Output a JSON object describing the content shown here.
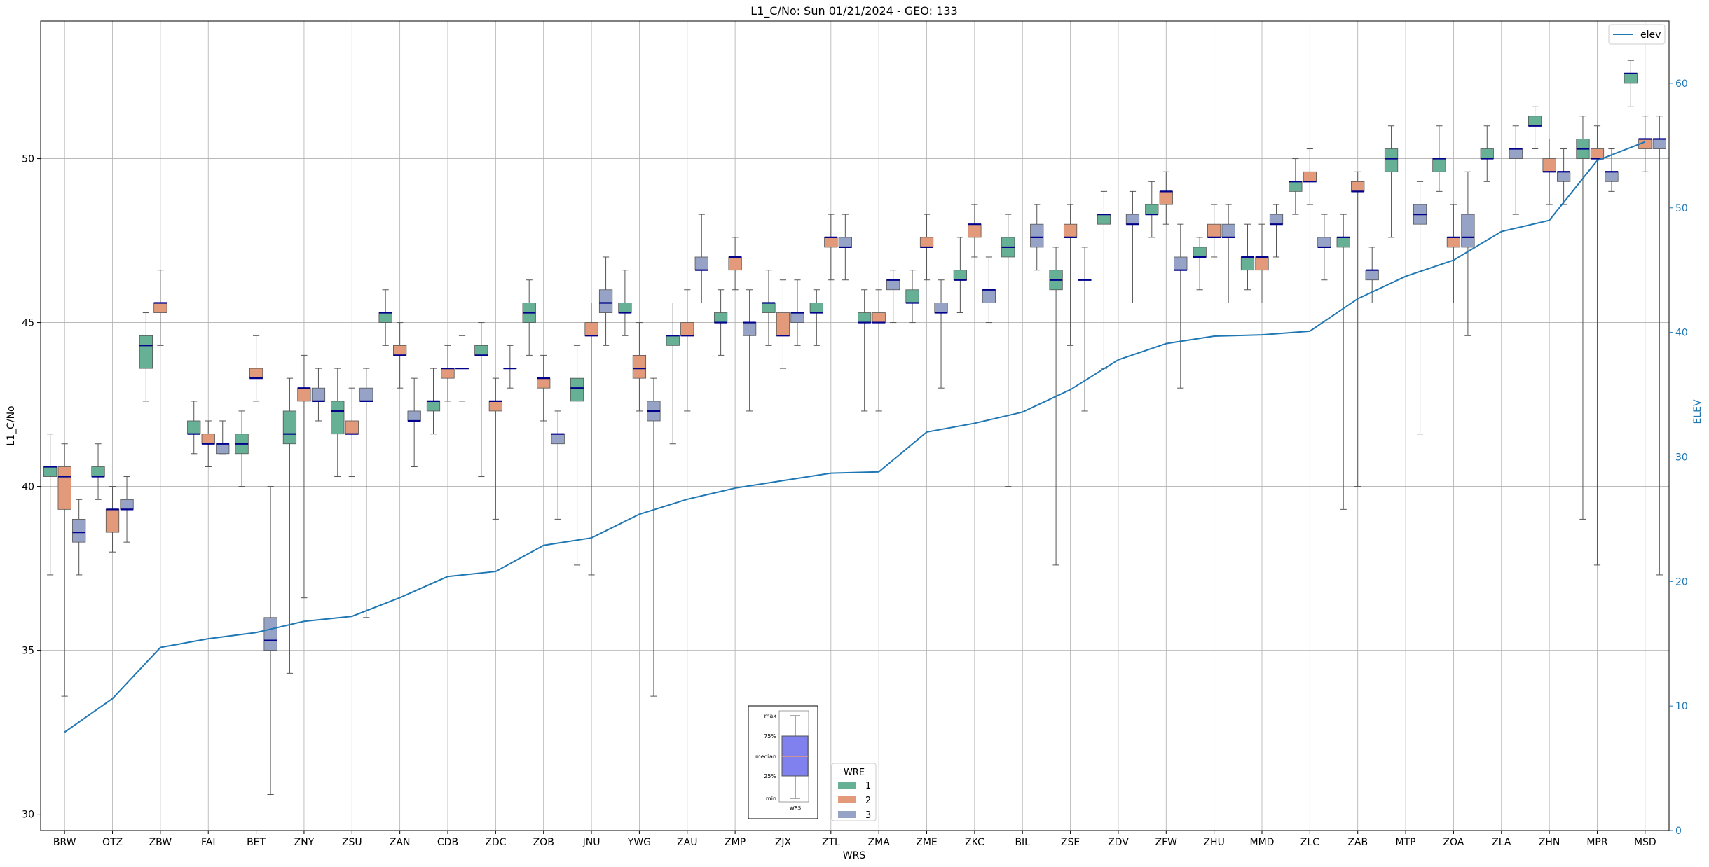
{
  "chart_data": {
    "type": "box",
    "title": "L1_C/No: Sun 01/21/2024 - GEO: 133",
    "xlabel": "WRS",
    "ylabel": "L1_C/No",
    "y2label": "ELEV",
    "ylim": [
      29.5,
      54.2
    ],
    "y2lim": [
      0,
      65
    ],
    "yticks": [
      30,
      35,
      40,
      45,
      50
    ],
    "y2ticks": [
      0,
      10,
      20,
      30,
      40,
      50,
      60
    ],
    "grid": true,
    "categories": [
      "BRW",
      "OTZ",
      "ZBW",
      "FAI",
      "BET",
      "ZNY",
      "ZSU",
      "ZAN",
      "CDB",
      "ZDC",
      "ZOB",
      "JNU",
      "YWG",
      "ZAU",
      "ZMP",
      "ZJX",
      "ZTL",
      "ZMA",
      "ZME",
      "ZKC",
      "BIL",
      "ZSE",
      "ZDV",
      "ZFW",
      "ZHU",
      "MMD",
      "ZLC",
      "ZAB",
      "MTP",
      "ZOA",
      "ZLA",
      "ZHN",
      "MPR",
      "MSD"
    ],
    "legend_title": "WRE",
    "legend_position": "bottom-center",
    "series": [
      {
        "name": "1",
        "color": "#66b096",
        "boxes": [
          {
            "cat": "BRW",
            "min": 37.3,
            "q1": 40.3,
            "median": 40.6,
            "q3": 40.6,
            "max": 41.6
          },
          {
            "cat": "OTZ",
            "min": 39.6,
            "q1": 40.3,
            "median": 40.3,
            "q3": 40.6,
            "max": 41.3
          },
          {
            "cat": "ZBW",
            "min": 42.6,
            "q1": 43.6,
            "median": 44.3,
            "q3": 44.6,
            "max": 45.3
          },
          {
            "cat": "FAI",
            "min": 41.0,
            "q1": 41.6,
            "median": 41.6,
            "q3": 42.0,
            "max": 42.6
          },
          {
            "cat": "BET",
            "min": 40.0,
            "q1": 41.0,
            "median": 41.3,
            "q3": 41.6,
            "max": 42.3
          },
          {
            "cat": "ZNY",
            "min": 34.3,
            "q1": 41.3,
            "median": 41.6,
            "q3": 42.3,
            "max": 43.3
          },
          {
            "cat": "ZSU",
            "min": 40.3,
            "q1": 41.6,
            "median": 42.3,
            "q3": 42.6,
            "max": 43.6
          },
          {
            "cat": "ZAN",
            "min": 44.3,
            "q1": 45.0,
            "median": 45.3,
            "q3": 45.3,
            "max": 46.0
          },
          {
            "cat": "CDB",
            "min": 41.6,
            "q1": 42.3,
            "median": 42.6,
            "q3": 42.6,
            "max": 43.6
          },
          {
            "cat": "ZDC",
            "min": 40.3,
            "q1": 44.0,
            "median": 44.0,
            "q3": 44.3,
            "max": 45.0
          },
          {
            "cat": "ZOB",
            "min": 44.0,
            "q1": 45.0,
            "median": 45.3,
            "q3": 45.6,
            "max": 46.3
          },
          {
            "cat": "JNU",
            "min": 37.6,
            "q1": 42.6,
            "median": 43.0,
            "q3": 43.3,
            "max": 44.3
          },
          {
            "cat": "YWG",
            "min": 44.6,
            "q1": 45.3,
            "median": 45.3,
            "q3": 45.6,
            "max": 46.6
          },
          {
            "cat": "ZAU",
            "min": 41.3,
            "q1": 44.3,
            "median": 44.6,
            "q3": 44.6,
            "max": 45.6
          },
          {
            "cat": "ZMP",
            "min": 44.0,
            "q1": 45.0,
            "median": 45.0,
            "q3": 45.3,
            "max": 46.0
          },
          {
            "cat": "ZJX",
            "min": 44.3,
            "q1": 45.3,
            "median": 45.6,
            "q3": 45.6,
            "max": 46.6
          },
          {
            "cat": "ZTL",
            "min": 44.3,
            "q1": 45.3,
            "median": 45.3,
            "q3": 45.6,
            "max": 46.0
          },
          {
            "cat": "ZMA",
            "min": 42.3,
            "q1": 45.0,
            "median": 45.0,
            "q3": 45.3,
            "max": 46.0
          },
          {
            "cat": "ZME",
            "min": 45.0,
            "q1": 45.6,
            "median": 45.6,
            "q3": 46.0,
            "max": 46.6
          },
          {
            "cat": "ZKC",
            "min": 45.3,
            "q1": 46.3,
            "median": 46.3,
            "q3": 46.6,
            "max": 47.6
          },
          {
            "cat": "BIL",
            "min": 40.0,
            "q1": 47.0,
            "median": 47.3,
            "q3": 47.6,
            "max": 48.3
          },
          {
            "cat": "ZSE",
            "min": 37.6,
            "q1": 46.0,
            "median": 46.3,
            "q3": 46.6,
            "max": 47.3
          },
          {
            "cat": "ZDV",
            "min": 43.6,
            "q1": 48.0,
            "median": 48.3,
            "q3": 48.3,
            "max": 49.0
          },
          {
            "cat": "ZFW",
            "min": 47.6,
            "q1": 48.3,
            "median": 48.3,
            "q3": 48.6,
            "max": 49.3
          },
          {
            "cat": "ZHU",
            "min": 46.0,
            "q1": 47.0,
            "median": 47.0,
            "q3": 47.3,
            "max": 47.6
          },
          {
            "cat": "MMD",
            "min": 46.0,
            "q1": 46.6,
            "median": 47.0,
            "q3": 47.0,
            "max": 48.0
          },
          {
            "cat": "ZLC",
            "min": 48.3,
            "q1": 49.0,
            "median": 49.3,
            "q3": 49.3,
            "max": 50.0
          },
          {
            "cat": "ZAB",
            "min": 39.3,
            "q1": 47.3,
            "median": 47.6,
            "q3": 47.6,
            "max": 48.3
          },
          {
            "cat": "MTP",
            "min": 47.6,
            "q1": 49.6,
            "median": 50.0,
            "q3": 50.3,
            "max": 51.0
          },
          {
            "cat": "ZOA",
            "min": 49.0,
            "q1": 49.6,
            "median": 50.0,
            "q3": 50.0,
            "max": 51.0
          },
          {
            "cat": "ZLA",
            "min": 49.3,
            "q1": 50.0,
            "median": 50.0,
            "q3": 50.3,
            "max": 51.0
          },
          {
            "cat": "ZHN",
            "min": 50.3,
            "q1": 51.0,
            "median": 51.0,
            "q3": 51.3,
            "max": 51.6
          },
          {
            "cat": "MPR",
            "min": 39.0,
            "q1": 50.0,
            "median": 50.3,
            "q3": 50.6,
            "max": 51.3
          },
          {
            "cat": "MSD",
            "min": 51.6,
            "q1": 52.3,
            "median": 52.6,
            "q3": 52.6,
            "max": 53.0
          }
        ]
      },
      {
        "name": "2",
        "color": "#e39a7a",
        "boxes": [
          {
            "cat": "BRW",
            "min": 33.6,
            "q1": 39.3,
            "median": 40.3,
            "q3": 40.6,
            "max": 41.3
          },
          {
            "cat": "OTZ",
            "min": 38.0,
            "q1": 38.6,
            "median": 39.3,
            "q3": 39.3,
            "max": 40.0
          },
          {
            "cat": "ZBW",
            "min": 44.3,
            "q1": 45.3,
            "median": 45.6,
            "q3": 45.6,
            "max": 46.6
          },
          {
            "cat": "FAI",
            "min": 40.6,
            "q1": 41.3,
            "median": 41.3,
            "q3": 41.6,
            "max": 42.0
          },
          {
            "cat": "BET",
            "min": 42.6,
            "q1": 43.3,
            "median": 43.3,
            "q3": 43.6,
            "max": 44.6
          },
          {
            "cat": "ZNY",
            "min": 36.6,
            "q1": 42.6,
            "median": 43.0,
            "q3": 43.0,
            "max": 44.0
          },
          {
            "cat": "ZSU",
            "min": 40.3,
            "q1": 41.6,
            "median": 41.6,
            "q3": 42.0,
            "max": 43.0
          },
          {
            "cat": "ZAN",
            "min": 43.0,
            "q1": 44.0,
            "median": 44.0,
            "q3": 44.3,
            "max": 45.0
          },
          {
            "cat": "CDB",
            "min": 42.6,
            "q1": 43.3,
            "median": 43.6,
            "q3": 43.6,
            "max": 44.3
          },
          {
            "cat": "ZDC",
            "min": 39.0,
            "q1": 42.3,
            "median": 42.6,
            "q3": 42.6,
            "max": 43.3
          },
          {
            "cat": "ZOB",
            "min": 42.0,
            "q1": 43.0,
            "median": 43.3,
            "q3": 43.3,
            "max": 44.0
          },
          {
            "cat": "JNU",
            "min": 37.3,
            "q1": 44.6,
            "median": 44.6,
            "q3": 45.0,
            "max": 45.6
          },
          {
            "cat": "YWG",
            "min": 42.3,
            "q1": 43.3,
            "median": 43.6,
            "q3": 44.0,
            "max": 45.0
          },
          {
            "cat": "ZAU",
            "min": 42.3,
            "q1": 44.6,
            "median": 44.6,
            "q3": 45.0,
            "max": 46.0
          },
          {
            "cat": "ZMP",
            "min": 46.0,
            "q1": 46.6,
            "median": 47.0,
            "q3": 47.0,
            "max": 47.6
          },
          {
            "cat": "ZJX",
            "min": 43.6,
            "q1": 44.6,
            "median": 44.6,
            "q3": 45.3,
            "max": 46.3
          },
          {
            "cat": "ZTL",
            "min": 46.3,
            "q1": 47.3,
            "median": 47.6,
            "q3": 47.6,
            "max": 48.3
          },
          {
            "cat": "ZMA",
            "min": 42.3,
            "q1": 45.0,
            "median": 45.0,
            "q3": 45.3,
            "max": 46.0
          },
          {
            "cat": "ZME",
            "min": 46.3,
            "q1": 47.3,
            "median": 47.3,
            "q3": 47.6,
            "max": 48.3
          },
          {
            "cat": "ZKC",
            "min": 47.0,
            "q1": 47.6,
            "median": 48.0,
            "q3": 48.0,
            "max": 48.6
          },
          {
            "cat": "ZSE",
            "min": 44.3,
            "q1": 47.6,
            "median": 47.6,
            "q3": 48.0,
            "max": 48.6
          },
          {
            "cat": "ZFW",
            "min": 48.0,
            "q1": 48.6,
            "median": 49.0,
            "q3": 49.0,
            "max": 49.6
          },
          {
            "cat": "ZHU",
            "min": 47.0,
            "q1": 47.6,
            "median": 47.6,
            "q3": 48.0,
            "max": 48.6
          },
          {
            "cat": "MMD",
            "min": 45.6,
            "q1": 46.6,
            "median": 47.0,
            "q3": 47.0,
            "max": 48.0
          },
          {
            "cat": "ZLC",
            "min": 48.6,
            "q1": 49.3,
            "median": 49.3,
            "q3": 49.6,
            "max": 50.3
          },
          {
            "cat": "ZAB",
            "min": 40.0,
            "q1": 49.0,
            "median": 49.0,
            "q3": 49.3,
            "max": 49.6
          },
          {
            "cat": "ZOA",
            "min": 45.6,
            "q1": 47.3,
            "median": 47.6,
            "q3": 47.6,
            "max": 48.6
          },
          {
            "cat": "ZHN",
            "min": 48.6,
            "q1": 49.6,
            "median": 49.6,
            "q3": 50.0,
            "max": 50.6
          },
          {
            "cat": "MPR",
            "min": 37.6,
            "q1": 50.0,
            "median": 50.0,
            "q3": 50.3,
            "max": 51.0
          },
          {
            "cat": "MSD",
            "min": 49.6,
            "q1": 50.3,
            "median": 50.6,
            "q3": 50.6,
            "max": 51.3
          }
        ]
      },
      {
        "name": "3",
        "color": "#96a3c6",
        "boxes": [
          {
            "cat": "BRW",
            "min": 37.3,
            "q1": 38.3,
            "median": 38.6,
            "q3": 39.0,
            "max": 39.6
          },
          {
            "cat": "OTZ",
            "min": 38.3,
            "q1": 39.3,
            "median": 39.3,
            "q3": 39.6,
            "max": 40.3
          },
          {
            "cat": "FAI",
            "min": 41.0,
            "q1": 41.0,
            "median": 41.3,
            "q3": 41.3,
            "max": 42.0
          },
          {
            "cat": "BET",
            "min": 30.6,
            "q1": 35.0,
            "median": 35.3,
            "q3": 36.0,
            "max": 40.0
          },
          {
            "cat": "ZNY",
            "min": 42.0,
            "q1": 42.6,
            "median": 42.6,
            "q3": 43.0,
            "max": 43.6
          },
          {
            "cat": "ZSU",
            "min": 36.0,
            "q1": 42.6,
            "median": 42.6,
            "q3": 43.0,
            "max": 43.6
          },
          {
            "cat": "ZAN",
            "min": 40.6,
            "q1": 42.0,
            "median": 42.0,
            "q3": 42.3,
            "max": 43.3
          },
          {
            "cat": "CDB",
            "min": 42.6,
            "q1": 43.6,
            "median": 43.6,
            "q3": 43.6,
            "max": 44.6
          },
          {
            "cat": "ZDC",
            "min": 43.0,
            "q1": 43.6,
            "median": 43.6,
            "q3": 43.6,
            "max": 44.3
          },
          {
            "cat": "ZOB",
            "min": 39.0,
            "q1": 41.3,
            "median": 41.6,
            "q3": 41.6,
            "max": 42.3
          },
          {
            "cat": "JNU",
            "min": 44.3,
            "q1": 45.3,
            "median": 45.6,
            "q3": 46.0,
            "max": 47.0
          },
          {
            "cat": "YWG",
            "min": 33.6,
            "q1": 42.0,
            "median": 42.3,
            "q3": 42.6,
            "max": 43.3
          },
          {
            "cat": "ZAU",
            "min": 45.6,
            "q1": 46.6,
            "median": 46.6,
            "q3": 47.0,
            "max": 48.3
          },
          {
            "cat": "ZMP",
            "min": 42.3,
            "q1": 44.6,
            "median": 45.0,
            "q3": 45.0,
            "max": 46.0
          },
          {
            "cat": "ZJX",
            "min": 44.3,
            "q1": 45.0,
            "median": 45.3,
            "q3": 45.3,
            "max": 46.3
          },
          {
            "cat": "ZTL",
            "min": 46.3,
            "q1": 47.3,
            "median": 47.3,
            "q3": 47.6,
            "max": 48.3
          },
          {
            "cat": "ZMA",
            "min": 45.0,
            "q1": 46.0,
            "median": 46.3,
            "q3": 46.3,
            "max": 46.6
          },
          {
            "cat": "ZME",
            "min": 43.0,
            "q1": 45.3,
            "median": 45.3,
            "q3": 45.6,
            "max": 46.3
          },
          {
            "cat": "ZKC",
            "min": 45.0,
            "q1": 45.6,
            "median": 46.0,
            "q3": 46.0,
            "max": 47.0
          },
          {
            "cat": "BIL",
            "min": 46.6,
            "q1": 47.3,
            "median": 47.6,
            "q3": 48.0,
            "max": 48.6
          },
          {
            "cat": "ZSE",
            "min": 42.3,
            "q1": 46.3,
            "median": 46.3,
            "q3": 46.3,
            "max": 47.3
          },
          {
            "cat": "ZDV",
            "min": 45.6,
            "q1": 48.0,
            "median": 48.0,
            "q3": 48.3,
            "max": 49.0
          },
          {
            "cat": "ZFW",
            "min": 43.0,
            "q1": 46.6,
            "median": 46.6,
            "q3": 47.0,
            "max": 48.0
          },
          {
            "cat": "ZHU",
            "min": 45.6,
            "q1": 47.6,
            "median": 47.6,
            "q3": 48.0,
            "max": 48.6
          },
          {
            "cat": "MMD",
            "min": 47.0,
            "q1": 48.0,
            "median": 48.0,
            "q3": 48.3,
            "max": 48.6
          },
          {
            "cat": "ZLC",
            "min": 46.3,
            "q1": 47.3,
            "median": 47.3,
            "q3": 47.6,
            "max": 48.3
          },
          {
            "cat": "ZAB",
            "min": 45.6,
            "q1": 46.3,
            "median": 46.6,
            "q3": 46.6,
            "max": 47.3
          },
          {
            "cat": "MTP",
            "min": 41.6,
            "q1": 48.0,
            "median": 48.3,
            "q3": 48.6,
            "max": 49.3
          },
          {
            "cat": "ZOA",
            "min": 44.6,
            "q1": 47.3,
            "median": 47.6,
            "q3": 48.3,
            "max": 49.6
          },
          {
            "cat": "ZLA",
            "min": 48.3,
            "q1": 50.0,
            "median": 50.3,
            "q3": 50.3,
            "max": 51.0
          },
          {
            "cat": "ZHN",
            "min": 48.6,
            "q1": 49.3,
            "median": 49.6,
            "q3": 49.6,
            "max": 50.3
          },
          {
            "cat": "MPR",
            "min": 49.0,
            "q1": 49.3,
            "median": 49.6,
            "q3": 49.6,
            "max": 50.3
          },
          {
            "cat": "MSD",
            "min": 37.3,
            "q1": 50.3,
            "median": 50.6,
            "q3": 50.6,
            "max": 51.3
          }
        ]
      }
    ],
    "elev_line": {
      "name": "elev",
      "color": "#1f77b4",
      "values": [
        7.9,
        10.6,
        14.7,
        15.4,
        15.9,
        16.8,
        17.2,
        18.7,
        20.4,
        20.8,
        22.9,
        23.5,
        25.4,
        26.6,
        27.5,
        28.1,
        28.7,
        28.8,
        32.0,
        32.7,
        33.6,
        35.4,
        37.8,
        39.1,
        39.7,
        39.8,
        40.1,
        42.7,
        44.5,
        45.8,
        48.1,
        49.0,
        53.8,
        55.3
      ]
    },
    "legend_items": [
      "1",
      "2",
      "3"
    ],
    "inset_key": {
      "labels": [
        "max",
        "75%",
        "median",
        "25%",
        "min"
      ],
      "xlabel": "WRS"
    }
  }
}
